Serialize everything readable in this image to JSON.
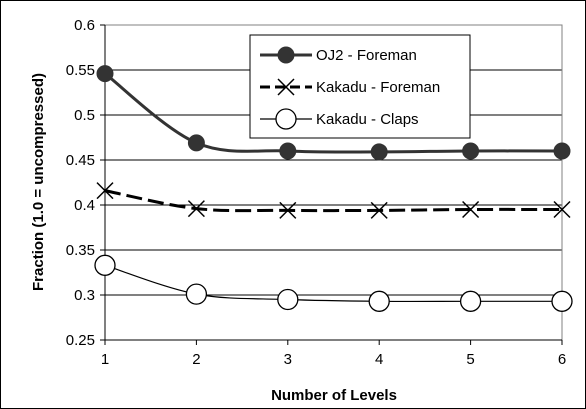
{
  "chart_data": {
    "type": "line",
    "xlabel": "Number of Levels",
    "ylabel": "Fraction (1.0 = uncompressed)",
    "x": [
      1,
      2,
      3,
      4,
      5,
      6
    ],
    "xlim": [
      1,
      6
    ],
    "ylim": [
      0.25,
      0.6
    ],
    "yticks": [
      "0.25",
      "0.3",
      "0.35",
      "0.4",
      "0.45",
      "0.5",
      "0.55",
      "0.6"
    ],
    "xticks": [
      "1",
      "2",
      "3",
      "4",
      "5",
      "6"
    ],
    "grid": "horizontal",
    "legend_position": "top-right",
    "series": [
      {
        "name": "OJ2 - Foreman",
        "marker": "filled-circle",
        "line": "thick-solid",
        "color": "#333333",
        "values": [
          0.546,
          0.469,
          0.46,
          0.459,
          0.46,
          0.46
        ]
      },
      {
        "name": "Kakadu - Foreman",
        "marker": "x",
        "line": "thick-dashed",
        "color": "#000000",
        "values": [
          0.416,
          0.396,
          0.394,
          0.394,
          0.395,
          0.395
        ]
      },
      {
        "name": "Kakadu - Claps",
        "marker": "open-circle",
        "line": "thin-solid",
        "color": "#000000",
        "values": [
          0.333,
          0.301,
          0.295,
          0.293,
          0.293,
          0.293
        ]
      }
    ]
  }
}
